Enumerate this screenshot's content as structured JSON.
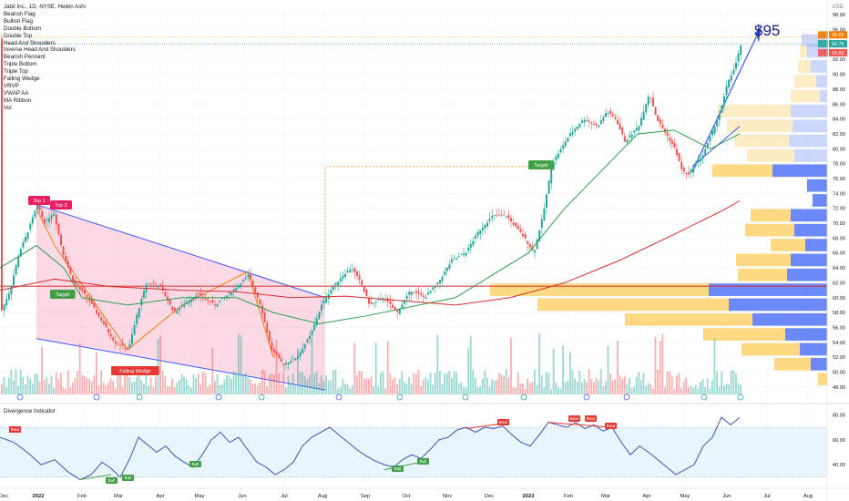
{
  "header": {
    "symbol_line": "Jabil Inc., 1D, NYSE, Heikin Ashi",
    "currency": "USD",
    "indicators": [
      "Bearish Flag",
      "Bullish Flag",
      "Double Bottom",
      "Double Top",
      "Head And Shoulders",
      "Inverse Head And Shoulders",
      "Bearish Pennant",
      "Triple Bottom",
      "Triple Top",
      "Falling Wedge",
      "VRVP",
      "VWAP AA",
      "MA Ribbon",
      "Vol"
    ]
  },
  "annotation": {
    "big_target": "$95"
  },
  "price_labels": {
    "last": "95.00",
    "bid": "94.78",
    "ask": "94.60"
  },
  "pattern_labels": [
    "Top 1",
    "Top 2",
    "Target",
    "Falling Wedge",
    "Target"
  ],
  "oscillator": {
    "title": "Divergence Indicator",
    "bull_label": "Bull",
    "bear_label": "Bear",
    "y_ticks": [
      "80.00",
      "60.00",
      "40.00"
    ]
  },
  "colors": {
    "up": "#26a69a",
    "down": "#ef5350",
    "ma_green": "#2e9e4f",
    "ma_red": "#d32f2f",
    "trend_blue": "#3d5afe",
    "vp_up": "#fdd36b",
    "vp_down": "#5b7cf7",
    "wedge_fill": "#f8bbd0",
    "osc_line": "#3f51b5",
    "osc_band": "#e3f2fd"
  },
  "chart_data": [
    {
      "type": "candlestick",
      "x_tick_labels": [
        "Dec",
        "2022",
        "Feb",
        "Mar",
        "Apr",
        "May",
        "Jun",
        "Jul",
        "Aug",
        "Sep",
        "Oct",
        "Nov",
        "Dec",
        "2023",
        "Feb",
        "Mar",
        "Apr",
        "May",
        "Jun",
        "Jul",
        "Aug"
      ],
      "y_tick_labels": [
        "98.00",
        "96.00",
        "94.00",
        "92.00",
        "90.00",
        "88.00",
        "86.00",
        "84.00",
        "82.00",
        "80.00",
        "78.00",
        "76.00",
        "74.00",
        "72.00",
        "70.00",
        "68.00",
        "66.00",
        "64.00",
        "62.00",
        "60.00",
        "58.00",
        "56.00",
        "54.00",
        "52.00",
        "50.00",
        "48.00"
      ],
      "ylim": [
        47,
        99
      ],
      "price_path": [
        [
          0,
          58
        ],
        [
          10,
          61
        ],
        [
          20,
          66
        ],
        [
          30,
          69
        ],
        [
          40,
          72.5
        ],
        [
          48,
          70
        ],
        [
          58,
          71.5
        ],
        [
          68,
          66
        ],
        [
          80,
          62
        ],
        [
          95,
          60
        ],
        [
          110,
          57
        ],
        [
          125,
          54
        ],
        [
          140,
          53
        ],
        [
          150,
          58
        ],
        [
          160,
          62
        ],
        [
          175,
          61.5
        ],
        [
          190,
          58
        ],
        [
          200,
          59
        ],
        [
          215,
          60.5
        ],
        [
          235,
          59
        ],
        [
          255,
          61
        ],
        [
          272,
          63
        ],
        [
          285,
          59
        ],
        [
          297,
          53
        ],
        [
          310,
          51
        ],
        [
          325,
          52
        ],
        [
          340,
          55
        ],
        [
          352,
          59
        ],
        [
          362,
          61
        ],
        [
          375,
          63
        ],
        [
          385,
          64
        ],
        [
          395,
          62
        ],
        [
          405,
          59
        ],
        [
          420,
          60
        ],
        [
          435,
          58
        ],
        [
          450,
          61
        ],
        [
          465,
          60
        ],
        [
          480,
          62
        ],
        [
          495,
          65
        ],
        [
          510,
          66
        ],
        [
          525,
          69
        ],
        [
          540,
          71
        ],
        [
          555,
          71
        ],
        [
          565,
          69.5
        ],
        [
          575,
          68
        ],
        [
          585,
          66
        ],
        [
          595,
          71
        ],
        [
          605,
          78
        ],
        [
          615,
          80
        ],
        [
          625,
          82
        ],
        [
          640,
          84
        ],
        [
          655,
          83
        ],
        [
          665,
          85
        ],
        [
          675,
          84
        ],
        [
          685,
          81
        ],
        [
          700,
          83
        ],
        [
          712,
          87.5
        ],
        [
          720,
          84
        ],
        [
          730,
          82
        ],
        [
          740,
          80
        ],
        [
          748,
          77
        ],
        [
          755,
          76.5
        ],
        [
          762,
          78
        ],
        [
          770,
          79
        ],
        [
          780,
          82
        ],
        [
          790,
          85
        ],
        [
          798,
          89
        ],
        [
          806,
          91
        ],
        [
          814,
          94.8
        ]
      ],
      "moving_averages": [
        {
          "name": "",
          "color": "#2e9e4f",
          "points": [
            [
              0,
              64
            ],
            [
              40,
              67
            ],
            [
              70,
              64
            ],
            [
              90,
              60
            ],
            [
              140,
              59
            ],
            [
              200,
              60
            ],
            [
              260,
              60
            ],
            [
              300,
              58
            ],
            [
              350,
              56.5
            ],
            [
              400,
              57.5
            ],
            [
              460,
              59
            ],
            [
              500,
              60
            ],
            [
              540,
              63
            ],
            [
              580,
              66
            ],
            [
              620,
              72
            ],
            [
              660,
              77
            ],
            [
              700,
              82
            ],
            [
              740,
              82.5
            ],
            [
              780,
              80
            ],
            [
              812,
              82
            ]
          ]
        },
        {
          "name": "",
          "color": "#d32f2f",
          "points": [
            [
              0,
              61
            ],
            [
              60,
              62.5
            ],
            [
              120,
              61.5
            ],
            [
              200,
              61
            ],
            [
              260,
              60.8
            ],
            [
              320,
              60
            ],
            [
              380,
              60.2
            ],
            [
              440,
              59.6
            ],
            [
              500,
              59
            ],
            [
              560,
              60
            ],
            [
              620,
              62
            ],
            [
              680,
              65
            ],
            [
              740,
              68.5
            ],
            [
              790,
              71.5
            ],
            [
              812,
              73
            ]
          ]
        }
      ],
      "volume_label": "Vol"
    },
    {
      "type": "line",
      "title": "Divergence Indicator",
      "y_tick_labels": [
        "80.00",
        "60.00",
        "40.00"
      ],
      "ylim": [
        24,
        84
      ],
      "band": [
        30,
        70
      ],
      "values": [
        [
          0,
          62
        ],
        [
          15,
          58
        ],
        [
          30,
          50
        ],
        [
          45,
          40
        ],
        [
          60,
          44
        ],
        [
          75,
          34
        ],
        [
          88,
          28
        ],
        [
          100,
          32
        ],
        [
          112,
          42
        ],
        [
          122,
          37
        ],
        [
          132,
          30
        ],
        [
          142,
          44
        ],
        [
          152,
          62
        ],
        [
          162,
          56
        ],
        [
          172,
          50
        ],
        [
          182,
          55
        ],
        [
          192,
          47
        ],
        [
          202,
          42
        ],
        [
          212,
          38
        ],
        [
          222,
          48
        ],
        [
          232,
          60
        ],
        [
          242,
          66
        ],
        [
          252,
          58
        ],
        [
          262,
          62
        ],
        [
          272,
          52
        ],
        [
          282,
          42
        ],
        [
          292,
          38
        ],
        [
          302,
          32
        ],
        [
          312,
          36
        ],
        [
          322,
          42
        ],
        [
          332,
          55
        ],
        [
          342,
          62
        ],
        [
          352,
          66
        ],
        [
          362,
          70
        ],
        [
          372,
          64
        ],
        [
          382,
          58
        ],
        [
          392,
          52
        ],
        [
          402,
          47
        ],
        [
          412,
          43
        ],
        [
          422,
          40
        ],
        [
          432,
          38
        ],
        [
          442,
          44
        ],
        [
          452,
          48
        ],
        [
          462,
          45
        ],
        [
          472,
          52
        ],
        [
          482,
          60
        ],
        [
          492,
          62
        ],
        [
          502,
          68
        ],
        [
          512,
          70
        ],
        [
          522,
          66
        ],
        [
          532,
          70
        ],
        [
          542,
          69
        ],
        [
          552,
          71
        ],
        [
          562,
          64
        ],
        [
          572,
          58
        ],
        [
          582,
          55
        ],
        [
          592,
          64
        ],
        [
          602,
          74
        ],
        [
          612,
          72
        ],
        [
          622,
          70
        ],
        [
          632,
          74
        ],
        [
          642,
          69
        ],
        [
          652,
          72
        ],
        [
          662,
          67
        ],
        [
          672,
          70
        ],
        [
          682,
          58
        ],
        [
          692,
          48
        ],
        [
          702,
          55
        ],
        [
          712,
          50
        ],
        [
          722,
          44
        ],
        [
          732,
          38
        ],
        [
          742,
          32
        ],
        [
          752,
          36
        ],
        [
          762,
          40
        ],
        [
          772,
          55
        ],
        [
          782,
          62
        ],
        [
          792,
          78
        ],
        [
          802,
          72
        ],
        [
          812,
          78
        ]
      ]
    }
  ]
}
